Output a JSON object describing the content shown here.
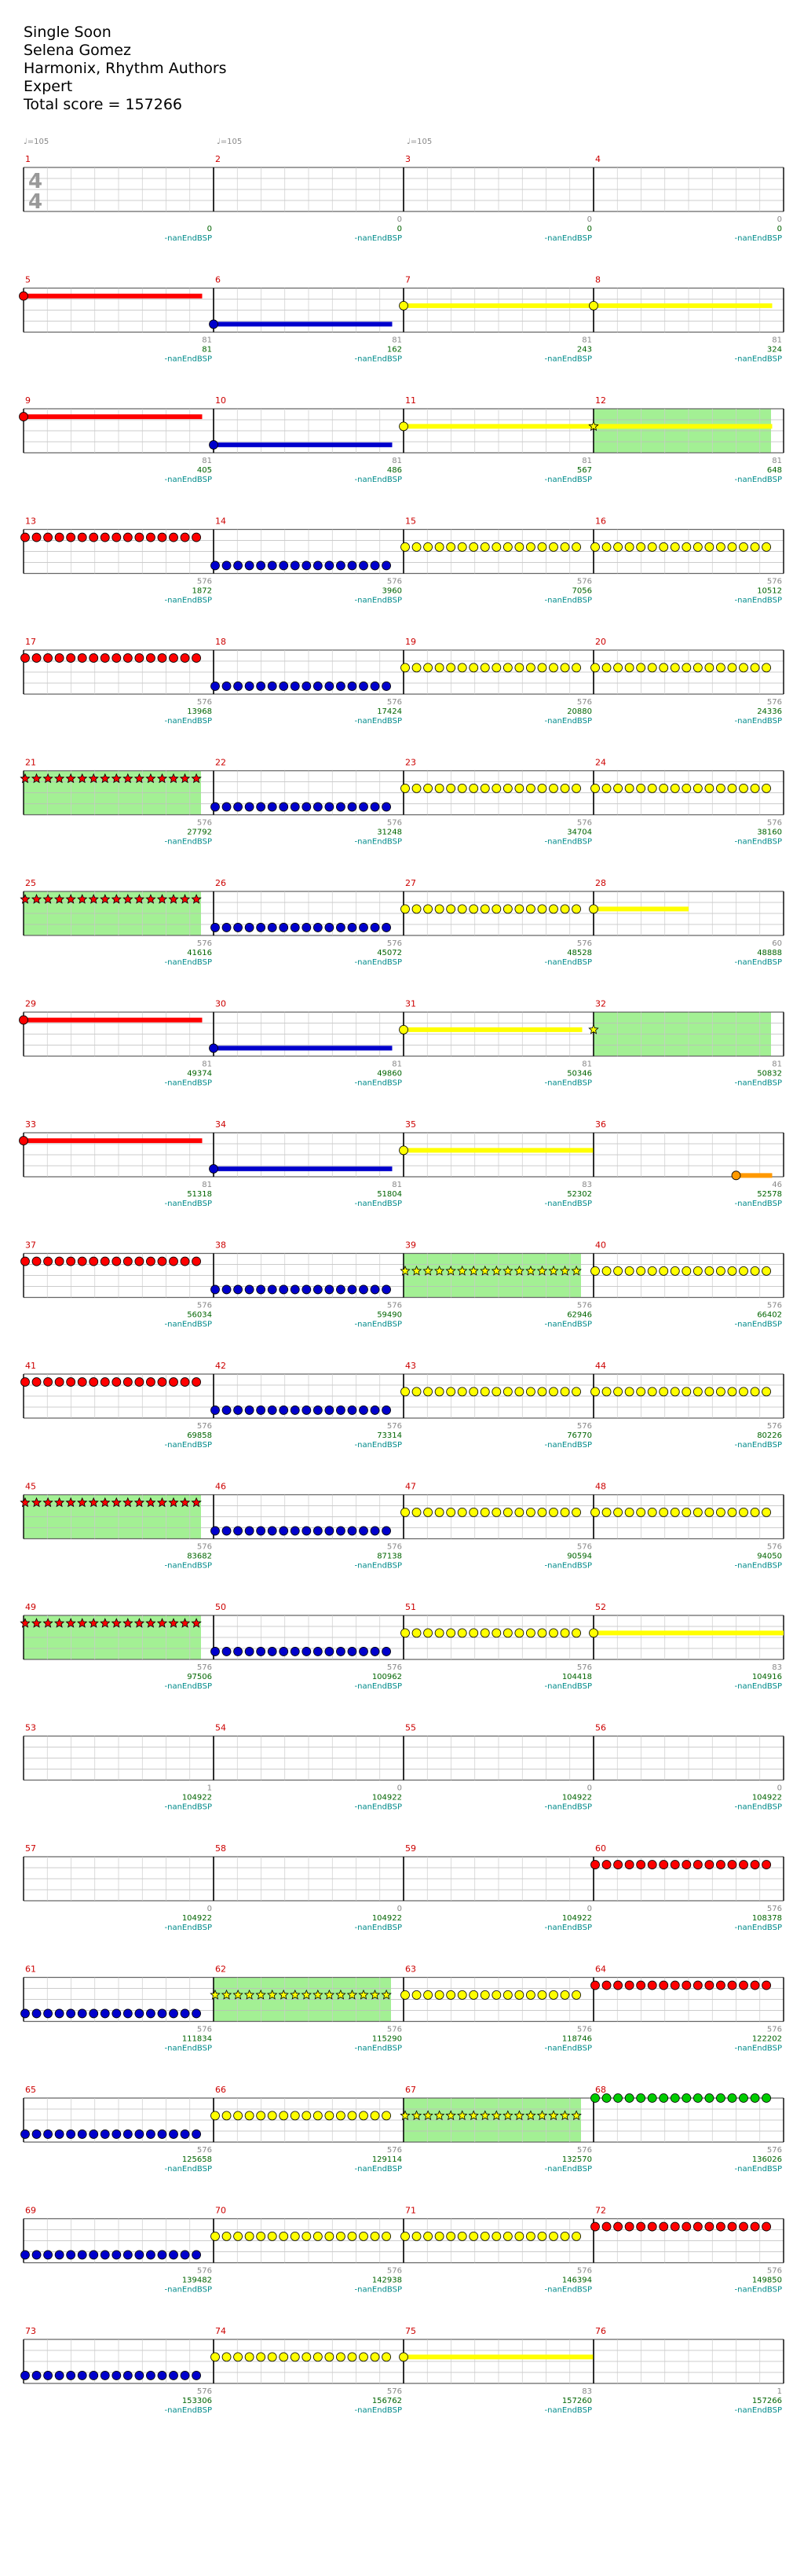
{
  "header": {
    "title": "Single Soon",
    "artist": "Selena Gomez",
    "charter": "Harmonix, Rhythm Authors",
    "difficulty": "Expert",
    "total_score": "Total score = 157266"
  },
  "tempo_markers": [
    {
      "measure": 1,
      "label": "♩=105"
    },
    {
      "measure": 2,
      "label": "♩=105"
    },
    {
      "measure": 3,
      "label": "♩=105"
    }
  ],
  "time_signature": {
    "num": "4",
    "den": "4"
  },
  "footer_label": "-nan                                                                                                                                         EndBSP",
  "colors": {
    "measure_number": "#cc0000",
    "score": "#006400",
    "measure_value": "#888888",
    "footer": "#008b8b",
    "red": "#ff0000",
    "blue": "#0000cc",
    "yellow": "#ffff00",
    "green": "#00cc00",
    "orange": "#ff9900",
    "star_power": "#99ee88"
  },
  "legend_note": "note rows: 0=green, 1=red, 2=yellow, 3=blue, 4=orange",
  "measures": [
    {
      "n": 1,
      "value": "",
      "score": "0",
      "notes": []
    },
    {
      "n": 2,
      "value": "0",
      "score": "0",
      "notes": []
    },
    {
      "n": 3,
      "value": "0",
      "score": "0",
      "notes": []
    },
    {
      "n": 4,
      "value": "0",
      "score": "0",
      "notes": []
    },
    {
      "n": 5,
      "value": "81",
      "score": "81",
      "notes": [
        {
          "type": "sustain",
          "color": "red",
          "start": 0,
          "end": 0.94
        }
      ]
    },
    {
      "n": 6,
      "value": "81",
      "score": "162",
      "notes": [
        {
          "type": "sustain",
          "color": "blue",
          "start": 0,
          "end": 0.94
        }
      ]
    },
    {
      "n": 7,
      "value": "81",
      "score": "243",
      "notes": [
        {
          "type": "sustain",
          "color": "yellow",
          "start": 0,
          "end": 1
        }
      ]
    },
    {
      "n": 8,
      "value": "81",
      "score": "324",
      "notes": [
        {
          "type": "sustain",
          "color": "yellow",
          "start": 0,
          "end": 0.94
        }
      ]
    },
    {
      "n": 9,
      "value": "81",
      "score": "405",
      "notes": [
        {
          "type": "sustain",
          "color": "red",
          "start": 0,
          "end": 0.94
        }
      ]
    },
    {
      "n": 10,
      "value": "81",
      "score": "486",
      "notes": [
        {
          "type": "sustain",
          "color": "blue",
          "start": 0,
          "end": 0.94
        }
      ]
    },
    {
      "n": 11,
      "value": "81",
      "score": "567",
      "notes": [
        {
          "type": "sustain",
          "color": "yellow",
          "start": 0,
          "end": 1
        }
      ]
    },
    {
      "n": 12,
      "value": "81",
      "score": "648",
      "sp": true,
      "notes": [
        {
          "type": "sustain",
          "color": "yellow",
          "start": 0,
          "end": 0.94,
          "star": true
        }
      ]
    },
    {
      "n": 13,
      "value": "576",
      "score": "1872",
      "notes": [
        {
          "type": "run",
          "color": "red",
          "count": 16
        }
      ]
    },
    {
      "n": 14,
      "value": "576",
      "score": "3960",
      "notes": [
        {
          "type": "run",
          "color": "blue",
          "count": 16
        }
      ]
    },
    {
      "n": 15,
      "value": "576",
      "score": "7056",
      "notes": [
        {
          "type": "run",
          "color": "yellow",
          "count": 16
        }
      ]
    },
    {
      "n": 16,
      "value": "576",
      "score": "10512",
      "notes": [
        {
          "type": "run",
          "color": "yellow",
          "count": 16
        }
      ]
    },
    {
      "n": 17,
      "value": "576",
      "score": "13968",
      "notes": [
        {
          "type": "run",
          "color": "red",
          "count": 16
        }
      ]
    },
    {
      "n": 18,
      "value": "576",
      "score": "17424",
      "notes": [
        {
          "type": "run",
          "color": "blue",
          "count": 16
        }
      ]
    },
    {
      "n": 19,
      "value": "576",
      "score": "20880",
      "notes": [
        {
          "type": "run",
          "color": "yellow",
          "count": 16
        }
      ]
    },
    {
      "n": 20,
      "value": "576",
      "score": "24336",
      "notes": [
        {
          "type": "run",
          "color": "yellow",
          "count": 16
        }
      ]
    },
    {
      "n": 21,
      "value": "576",
      "score": "27792",
      "sp": true,
      "notes": [
        {
          "type": "run",
          "color": "red",
          "count": 16,
          "star": true
        }
      ]
    },
    {
      "n": 22,
      "value": "576",
      "score": "31248",
      "notes": [
        {
          "type": "run",
          "color": "blue",
          "count": 16
        }
      ]
    },
    {
      "n": 23,
      "value": "576",
      "score": "34704",
      "notes": [
        {
          "type": "run",
          "color": "yellow",
          "count": 16
        }
      ]
    },
    {
      "n": 24,
      "value": "576",
      "score": "38160",
      "notes": [
        {
          "type": "run",
          "color": "yellow",
          "count": 16
        }
      ]
    },
    {
      "n": 25,
      "value": "576",
      "score": "41616",
      "sp": true,
      "notes": [
        {
          "type": "run",
          "color": "red",
          "count": 16,
          "star": true
        }
      ]
    },
    {
      "n": 26,
      "value": "576",
      "score": "45072",
      "notes": [
        {
          "type": "run",
          "color": "blue",
          "count": 16
        }
      ]
    },
    {
      "n": 27,
      "value": "576",
      "score": "48528",
      "notes": [
        {
          "type": "run",
          "color": "yellow",
          "count": 16
        }
      ]
    },
    {
      "n": 28,
      "value": "60",
      "score": "48888",
      "notes": [
        {
          "type": "sustain",
          "color": "yellow",
          "start": 0,
          "end": 0.5
        }
      ]
    },
    {
      "n": 29,
      "value": "81",
      "score": "49374",
      "notes": [
        {
          "type": "sustain",
          "color": "red",
          "start": 0,
          "end": 0.94
        }
      ]
    },
    {
      "n": 30,
      "value": "81",
      "score": "49860",
      "notes": [
        {
          "type": "sustain",
          "color": "blue",
          "start": 0,
          "end": 0.94
        }
      ]
    },
    {
      "n": 31,
      "value": "81",
      "score": "50346",
      "notes": [
        {
          "type": "sustain",
          "color": "yellow",
          "start": 0,
          "end": 0.94
        }
      ]
    },
    {
      "n": 32,
      "value": "81",
      "score": "50832",
      "sp": true,
      "notes": [
        {
          "type": "sustain",
          "color": "yellow",
          "start": 0,
          "end": 0.94,
          "star": true,
          "hidden_line": true
        }
      ]
    },
    {
      "n": 33,
      "value": "81",
      "score": "51318",
      "notes": [
        {
          "type": "sustain",
          "color": "red",
          "start": 0,
          "end": 0.94
        }
      ]
    },
    {
      "n": 34,
      "value": "81",
      "score": "51804",
      "notes": [
        {
          "type": "sustain",
          "color": "blue",
          "start": 0,
          "end": 0.94
        }
      ]
    },
    {
      "n": 35,
      "value": "83",
      "score": "52302",
      "notes": [
        {
          "type": "sustain",
          "color": "yellow",
          "start": 0,
          "end": 1
        }
      ]
    },
    {
      "n": 36,
      "value": "46",
      "score": "52578",
      "notes": [
        {
          "type": "sustain",
          "color": "orange",
          "start": 0.75,
          "end": 0.94
        }
      ]
    },
    {
      "n": 37,
      "value": "576",
      "score": "56034",
      "notes": [
        {
          "type": "run",
          "color": "red",
          "count": 16
        }
      ]
    },
    {
      "n": 38,
      "value": "576",
      "score": "59490",
      "notes": [
        {
          "type": "run",
          "color": "blue",
          "count": 16
        }
      ]
    },
    {
      "n": 39,
      "value": "576",
      "score": "62946",
      "sp": true,
      "notes": [
        {
          "type": "run",
          "color": "yellow",
          "count": 16,
          "star": true
        }
      ]
    },
    {
      "n": 40,
      "value": "576",
      "score": "66402",
      "notes": [
        {
          "type": "run",
          "color": "yellow",
          "count": 16
        }
      ]
    },
    {
      "n": 41,
      "value": "576",
      "score": "69858",
      "notes": [
        {
          "type": "run",
          "color": "red",
          "count": 16
        }
      ]
    },
    {
      "n": 42,
      "value": "576",
      "score": "73314",
      "notes": [
        {
          "type": "run",
          "color": "blue",
          "count": 16
        }
      ]
    },
    {
      "n": 43,
      "value": "576",
      "score": "76770",
      "notes": [
        {
          "type": "run",
          "color": "yellow",
          "count": 16
        }
      ]
    },
    {
      "n": 44,
      "value": "576",
      "score": "80226",
      "notes": [
        {
          "type": "run",
          "color": "yellow",
          "count": 16
        }
      ]
    },
    {
      "n": 45,
      "value": "576",
      "score": "83682",
      "sp": true,
      "notes": [
        {
          "type": "run",
          "color": "red",
          "count": 16,
          "star": true
        }
      ]
    },
    {
      "n": 46,
      "value": "576",
      "score": "87138",
      "notes": [
        {
          "type": "run",
          "color": "blue",
          "count": 16
        }
      ]
    },
    {
      "n": 47,
      "value": "576",
      "score": "90594",
      "notes": [
        {
          "type": "run",
          "color": "yellow",
          "count": 16
        }
      ]
    },
    {
      "n": 48,
      "value": "576",
      "score": "94050",
      "notes": [
        {
          "type": "run",
          "color": "yellow",
          "count": 16
        }
      ]
    },
    {
      "n": 49,
      "value": "576",
      "score": "97506",
      "sp": true,
      "notes": [
        {
          "type": "run",
          "color": "red",
          "count": 16,
          "star": true
        }
      ]
    },
    {
      "n": 50,
      "value": "576",
      "score": "100962",
      "notes": [
        {
          "type": "run",
          "color": "blue",
          "count": 16
        }
      ]
    },
    {
      "n": 51,
      "value": "576",
      "score": "104418",
      "notes": [
        {
          "type": "run",
          "color": "yellow",
          "count": 16
        }
      ]
    },
    {
      "n": 52,
      "value": "83",
      "score": "104916",
      "notes": [
        {
          "type": "sustain",
          "color": "yellow",
          "start": 0,
          "end": 1
        }
      ]
    },
    {
      "n": 53,
      "value": "1",
      "score": "104922",
      "notes": []
    },
    {
      "n": 54,
      "value": "0",
      "score": "104922",
      "notes": []
    },
    {
      "n": 55,
      "value": "0",
      "score": "104922",
      "notes": []
    },
    {
      "n": 56,
      "value": "0",
      "score": "104922",
      "notes": []
    },
    {
      "n": 57,
      "value": "0",
      "score": "104922",
      "notes": []
    },
    {
      "n": 58,
      "value": "0",
      "score": "104922",
      "notes": []
    },
    {
      "n": 59,
      "value": "0",
      "score": "104922",
      "notes": []
    },
    {
      "n": 60,
      "value": "576",
      "score": "108378",
      "notes": [
        {
          "type": "run",
          "color": "red",
          "count": 16
        }
      ]
    },
    {
      "n": 61,
      "value": "576",
      "score": "111834",
      "notes": [
        {
          "type": "run",
          "color": "blue",
          "count": 16
        }
      ]
    },
    {
      "n": 62,
      "value": "576",
      "score": "115290",
      "sp": true,
      "notes": [
        {
          "type": "run",
          "color": "yellow",
          "count": 16,
          "star": true
        }
      ]
    },
    {
      "n": 63,
      "value": "576",
      "score": "118746",
      "notes": [
        {
          "type": "run",
          "color": "yellow",
          "count": 16
        }
      ]
    },
    {
      "n": 64,
      "value": "576",
      "score": "122202",
      "notes": [
        {
          "type": "run",
          "color": "red",
          "count": 16
        }
      ]
    },
    {
      "n": 65,
      "value": "576",
      "score": "125658",
      "notes": [
        {
          "type": "run",
          "color": "blue",
          "count": 16
        }
      ]
    },
    {
      "n": 66,
      "value": "576",
      "score": "129114",
      "notes": [
        {
          "type": "run",
          "color": "yellow",
          "count": 16
        }
      ]
    },
    {
      "n": 67,
      "value": "576",
      "score": "132570",
      "sp": true,
      "notes": [
        {
          "type": "run",
          "color": "yellow",
          "count": 16,
          "star": true
        }
      ]
    },
    {
      "n": 68,
      "value": "576",
      "score": "136026",
      "notes": [
        {
          "type": "run",
          "color": "green",
          "count": 16
        }
      ]
    },
    {
      "n": 69,
      "value": "576",
      "score": "139482",
      "notes": [
        {
          "type": "run",
          "color": "blue",
          "count": 16
        }
      ]
    },
    {
      "n": 70,
      "value": "576",
      "score": "142938",
      "notes": [
        {
          "type": "run",
          "color": "yellow",
          "count": 16
        }
      ]
    },
    {
      "n": 71,
      "value": "576",
      "score": "146394",
      "notes": [
        {
          "type": "run",
          "color": "yellow",
          "count": 16
        }
      ]
    },
    {
      "n": 72,
      "value": "576",
      "score": "149850",
      "notes": [
        {
          "type": "run",
          "color": "red",
          "count": 16
        }
      ]
    },
    {
      "n": 73,
      "value": "576",
      "score": "153306",
      "notes": [
        {
          "type": "run",
          "color": "blue",
          "count": 16
        }
      ]
    },
    {
      "n": 74,
      "value": "576",
      "score": "156762",
      "notes": [
        {
          "type": "run",
          "color": "yellow",
          "count": 16
        }
      ]
    },
    {
      "n": 75,
      "value": "83",
      "score": "157260",
      "notes": [
        {
          "type": "sustain",
          "color": "yellow",
          "start": 0,
          "end": 1
        }
      ]
    },
    {
      "n": 76,
      "value": "1",
      "score": "157266",
      "notes": []
    }
  ]
}
